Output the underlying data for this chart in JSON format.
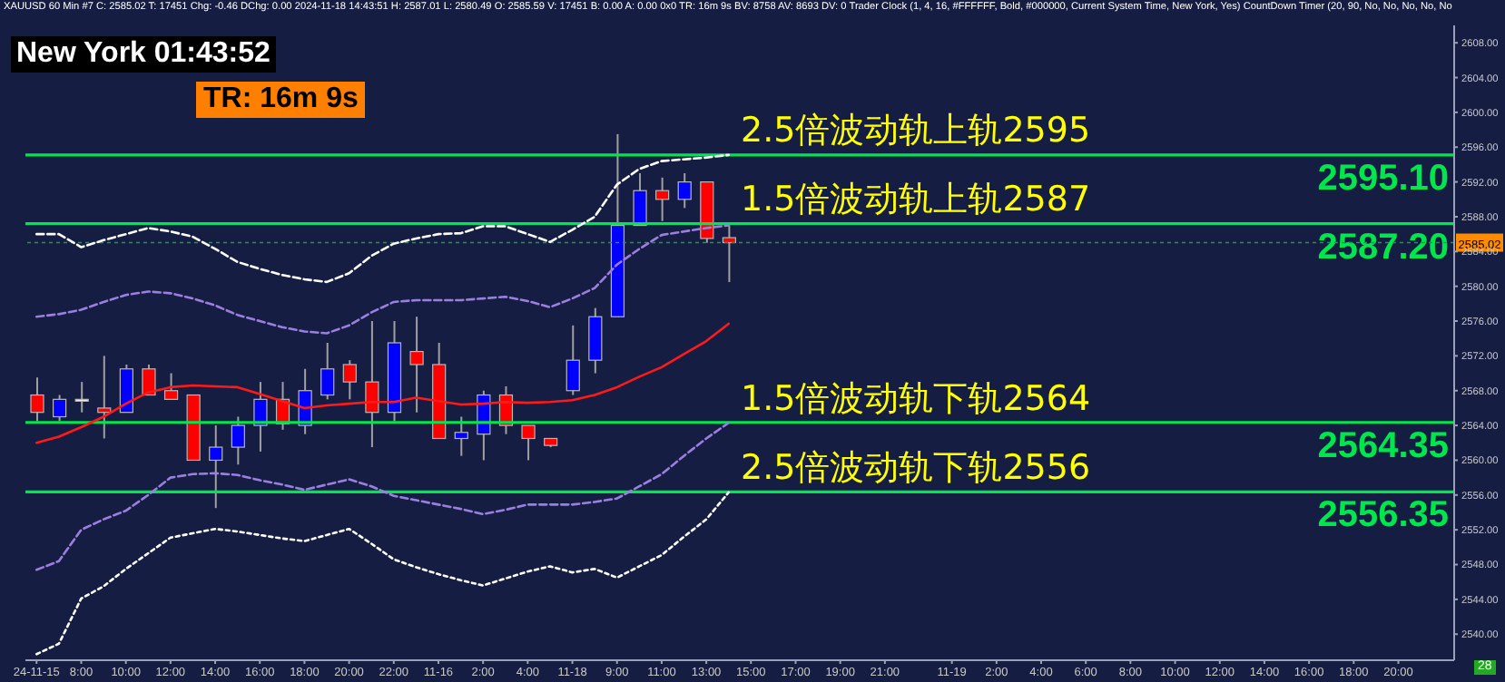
{
  "chart_data": {
    "type": "candlestick",
    "title": "XAUUSD 60 Min #7 C: 2585.02 T: 17451 Chg: -0.46 DChg: 0.00 2024-11-18 14:43:51 H: 2587.01 L: 2580.49 O: 2585.59 V: 17451 B: 0.00 A: 0.00 0x0 TR: 16m 9s BV: 8758 AV: 8693 DV: 0 Trader Clock (1, 4, 16, #FFFFFF, Bold, #000000, Current System Time, New York, Yes) CountDown Timer (20, 90, No, No, No, No, No",
    "categories": [
      "24-11-15",
      null,
      "8:00",
      null,
      "10:00",
      null,
      "12:00",
      null,
      "14:00",
      null,
      "16:00",
      null,
      "18:00",
      null,
      "20:00",
      null,
      "22:00",
      null,
      "11-16",
      null,
      "2:00",
      null,
      "4:00",
      null,
      "11-18",
      null,
      "9:00",
      null,
      "11:00",
      null,
      "13:00",
      null,
      "15:00",
      null,
      "17:00",
      null,
      "19:00",
      null,
      "21:00",
      null,
      null,
      "11-19",
      null,
      "2:00",
      null,
      "4:00",
      null,
      "6:00",
      null,
      "8:00",
      null,
      "10:00",
      null,
      "12:00",
      null,
      "14:00",
      null,
      "16:00",
      null,
      "18:00",
      null,
      "20:00",
      null,
      null
    ],
    "ohlc": [
      [
        2567.5,
        2569.5,
        2564.5,
        2565.5
      ],
      [
        2565,
        2567.5,
        2564.5,
        2567
      ],
      [
        2567,
        2569,
        2565.5,
        2567
      ],
      [
        2566,
        2572,
        2562.5,
        2565.5
      ],
      [
        2565.5,
        2571,
        2565.5,
        2570.5
      ],
      [
        2570.5,
        2571,
        2567.5,
        2567.5
      ],
      [
        2568,
        2570,
        2567,
        2567
      ],
      [
        2567.5,
        2567.5,
        2560,
        2560
      ],
      [
        2560,
        2564,
        2554.5,
        2561.5
      ],
      [
        2561.5,
        2565,
        2559.5,
        2564
      ],
      [
        2564,
        2569,
        2561,
        2567
      ],
      [
        2567,
        2569,
        2563.5,
        2564.2
      ],
      [
        2564,
        2570.5,
        2563,
        2568
      ],
      [
        2567.5,
        2573.5,
        2567,
        2570.5
      ],
      [
        2571,
        2571.5,
        2567,
        2569
      ],
      [
        2569,
        2576,
        2561.5,
        2565.5
      ],
      [
        2565.5,
        2576,
        2564.5,
        2573.5
      ],
      [
        2572.5,
        2576.5,
        2565.5,
        2571
      ],
      [
        2571,
        2573.5,
        2562.5,
        2562.5
      ],
      [
        2562.5,
        2565,
        2560.5,
        2563.2
      ],
      [
        2563,
        2568,
        2560,
        2567.5
      ],
      [
        2567.5,
        2568.5,
        2563,
        2564
      ],
      [
        2564,
        2564,
        2560,
        2562.5
      ],
      [
        2562.5,
        2562.5,
        2561.5,
        2561.7
      ],
      [
        2568,
        2575.5,
        2567.5,
        2571.5
      ],
      [
        2571.5,
        2577.5,
        2570,
        2576.5
      ],
      [
        2576.5,
        2597.5,
        2576.5,
        2587
      ],
      [
        2587,
        2593,
        2587,
        2591
      ],
      [
        2591,
        2592.5,
        2587.5,
        2590
      ],
      [
        2590,
        2593,
        2589,
        2592
      ],
      [
        2592,
        2592,
        2585,
        2585.5
      ],
      [
        2585.59,
        2587.01,
        2580.49,
        2585.02
      ],
      null,
      null,
      null,
      null,
      null,
      null,
      null,
      null,
      null,
      null,
      null,
      null,
      null,
      null,
      null,
      null,
      null,
      null,
      null,
      null,
      null,
      null,
      null,
      null,
      null,
      null,
      null,
      null,
      null,
      null,
      null,
      null
    ],
    "colors": [
      "#ff0000",
      "#0000ff",
      "#ffffff",
      "#ff0000",
      "#0000ff",
      "#ff0000",
      "#ff0000",
      "#ff0000",
      "#0000ff",
      "#0000ff",
      "#0000ff",
      "#ff0000",
      "#0000ff",
      "#0000ff",
      "#ff0000",
      "#ff0000",
      "#0000ff",
      "#ff0000",
      "#ff0000",
      "#0000ff",
      "#0000ff",
      "#ff0000",
      "#ff0000",
      "#ff0000",
      "#0000ff",
      "#0000ff",
      "#0000ff",
      "#0000ff",
      "#ff0000",
      "#0000ff",
      "#ff0000",
      "#ff0000",
      null,
      null,
      null,
      null,
      null,
      null,
      null,
      null,
      null,
      null,
      null,
      null,
      null,
      null,
      null,
      null,
      null,
      null,
      null,
      null,
      null,
      null,
      null,
      null,
      null,
      null,
      null,
      null,
      null,
      null,
      null,
      null
    ],
    "series": [
      {
        "type": "line",
        "color": "#ffffff",
        "line_style": "dashed",
        "values": [
          2586,
          2586,
          2584.5,
          2585.3,
          2586,
          2586.7,
          2586.3,
          2585.7,
          2584.3,
          2582.8,
          2582,
          2581.3,
          2580.8,
          2580.5,
          2581.5,
          2583.5,
          2584.9,
          2585.5,
          2586,
          2586.1,
          2586.9,
          2586.9,
          2586,
          2585.1,
          2586.5,
          2588,
          2591.7,
          2593.5,
          2594.4,
          2594.6,
          2594.8,
          2595.1,
          null,
          null,
          null,
          null,
          null,
          null,
          null,
          null,
          null,
          null,
          null,
          null,
          null,
          null,
          null,
          null,
          null,
          null,
          null,
          null,
          null,
          null,
          null,
          null,
          null,
          null,
          null,
          null,
          null,
          null,
          null,
          null
        ]
      },
      {
        "type": "line",
        "color": "#9b7fe0",
        "line_style": "dashed",
        "values": [
          2576.5,
          2576.8,
          2577.3,
          2578.2,
          2579,
          2579.4,
          2579.2,
          2578.6,
          2577.8,
          2576.7,
          2576,
          2575.3,
          2574.8,
          2574.6,
          2575.5,
          2577,
          2578.2,
          2578.4,
          2578.4,
          2578.4,
          2578.6,
          2578.8,
          2578.3,
          2577.6,
          2578.6,
          2579.8,
          2582.5,
          2584.3,
          2585.9,
          2586.3,
          2586.7,
          2587,
          null,
          null,
          null,
          null,
          null,
          null,
          null,
          null,
          null,
          null,
          null,
          null,
          null,
          null,
          null,
          null,
          null,
          null,
          null,
          null,
          null,
          null,
          null,
          null,
          null,
          null,
          null,
          null,
          null,
          null,
          null,
          null
        ]
      },
      {
        "type": "line",
        "color": "#ff1a1a",
        "line_style": "solid",
        "values": [
          2562,
          2562.7,
          2563.8,
          2565,
          2566.5,
          2567.8,
          2568.4,
          2568.6,
          2568.5,
          2568.4,
          2567.6,
          2566.8,
          2566,
          2566.3,
          2566.5,
          2566.7,
          2566.7,
          2567.2,
          2566.8,
          2566.4,
          2566.5,
          2566.7,
          2566.6,
          2566.7,
          2566.9,
          2567.5,
          2568.4,
          2569.6,
          2570.7,
          2572.2,
          2573.7,
          2575.7,
          null,
          null,
          null,
          null,
          null,
          null,
          null,
          null,
          null,
          null,
          null,
          null,
          null,
          null,
          null,
          null,
          null,
          null,
          null,
          null,
          null,
          null,
          null,
          null,
          null,
          null,
          null,
          null,
          null,
          null,
          null,
          null
        ]
      },
      {
        "type": "line",
        "color": "#9b7fe0",
        "line_style": "dashed",
        "values": [
          2547.4,
          2548.4,
          2552,
          2553.2,
          2554.2,
          2556,
          2558,
          2558.4,
          2558.5,
          2558.3,
          2557.7,
          2557.2,
          2556.6,
          2557.2,
          2557.8,
          2557,
          2555.9,
          2555.4,
          2554.9,
          2554.4,
          2553.8,
          2554.3,
          2554.9,
          2554.9,
          2554.9,
          2555.2,
          2555.6,
          2557,
          2558.4,
          2560.5,
          2562.5,
          2564.3,
          null,
          null,
          null,
          null,
          null,
          null,
          null,
          null,
          null,
          null,
          null,
          null,
          null,
          null,
          null,
          null,
          null,
          null,
          null,
          null,
          null,
          null,
          null,
          null,
          null,
          null,
          null,
          null,
          null,
          null,
          null,
          null
        ]
      },
      {
        "type": "line",
        "color": "#ffffff",
        "line_style": "dotted",
        "values": [
          2537.7,
          2538.9,
          2544.1,
          2545.5,
          2547.5,
          2549.3,
          2551.1,
          2551.6,
          2552.1,
          2551.8,
          2551.4,
          2551,
          2550.7,
          2551.4,
          2552.1,
          2550.4,
          2548.6,
          2547.7,
          2546.9,
          2546.2,
          2545.6,
          2546.4,
          2547.2,
          2547.8,
          2547.1,
          2547.5,
          2546.5,
          2547.8,
          2549.1,
          2551.2,
          2553.2,
          2556.3,
          null,
          null,
          null,
          null,
          null,
          null,
          null,
          null,
          null,
          null,
          null,
          null,
          null,
          null,
          null,
          null,
          null,
          null,
          null,
          null,
          null,
          null,
          null,
          null,
          null,
          null,
          null,
          null,
          null,
          null,
          null,
          null
        ]
      }
    ],
    "ylim": [
      2537,
      2610
    ],
    "yticks": [
      {
        "value": 2540,
        "label": "2540.00"
      },
      {
        "value": 2544,
        "label": "2544.00"
      },
      {
        "value": 2548,
        "label": "2548.00"
      },
      {
        "value": 2552,
        "label": "2552.00"
      },
      {
        "value": 2556,
        "label": "2556.00"
      },
      {
        "value": 2560,
        "label": "2560.00"
      },
      {
        "value": 2564,
        "label": "2564.00"
      },
      {
        "value": 2568,
        "label": "2568.00"
      },
      {
        "value": 2572,
        "label": "2572.00"
      },
      {
        "value": 2576,
        "label": "2576.00"
      },
      {
        "value": 2580,
        "label": "2580.00"
      },
      {
        "value": 2584,
        "label": "2584.00"
      },
      {
        "value": 2588,
        "label": "2588.00"
      },
      {
        "value": 2592,
        "label": "2592.00"
      },
      {
        "value": 2596,
        "label": "2596.00"
      },
      {
        "value": 2600,
        "label": "2600.00"
      },
      {
        "value": 2604,
        "label": "2604.00"
      },
      {
        "value": 2608,
        "label": "2608.00"
      }
    ],
    "ref_lines": [
      {
        "axis": "y",
        "value": 2595.1,
        "label": "2595.10",
        "color": "#00e64d",
        "line_style": "solid"
      },
      {
        "axis": "y",
        "value": 2587.2,
        "label": "2587.20",
        "color": "#00e64d",
        "line_style": "solid"
      },
      {
        "axis": "y",
        "value": 2564.35,
        "label": "2564.35",
        "color": "#00e64d",
        "line_style": "solid"
      },
      {
        "axis": "y",
        "value": 2556.35,
        "label": "2556.35",
        "color": "#00e64d",
        "line_style": "solid"
      },
      {
        "axis": "y",
        "value": 2585.02,
        "label": "2585.02",
        "color": "#1f9a3a",
        "line_style": "dotted"
      }
    ],
    "annotations": [
      "New York 01:43:52",
      "TR: 16m 9s",
      "28",
      {
        "text": "2.5倍波动轨上轨2595",
        "y": 2595.1
      },
      {
        "text": "1.5倍波动轨上轨2587",
        "y": 2587.2
      },
      {
        "text": "1.5倍波动轨下轨2564",
        "y": 2564.35
      },
      {
        "text": "2.5倍波动轨下轨2556",
        "y": 2556.35
      }
    ]
  }
}
